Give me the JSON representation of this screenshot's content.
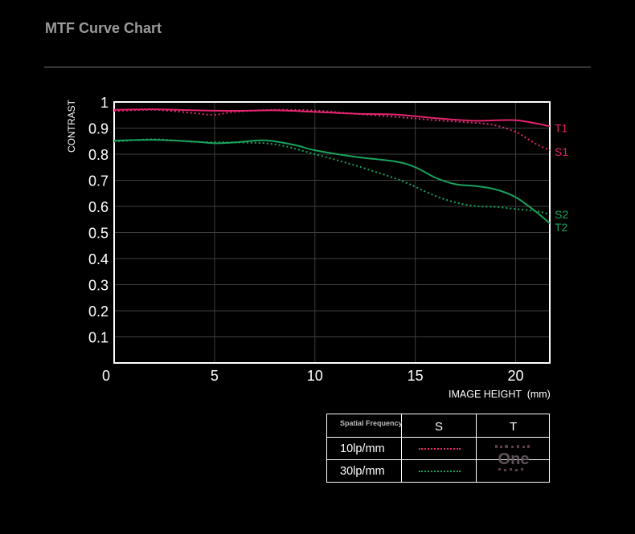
{
  "page": {
    "title": "MTF Curve Chart"
  },
  "chart_data": {
    "type": "line",
    "ylabel": "CONTRAST",
    "xlabel": "IMAGE HEIGHT  (mm)",
    "xlim": [
      0,
      21.7
    ],
    "ylim": [
      0,
      1
    ],
    "x_ticks": [
      {
        "value": 0,
        "label": "0"
      },
      {
        "value": 5,
        "label": "5"
      },
      {
        "value": 10,
        "label": "10"
      },
      {
        "value": 15,
        "label": "15"
      },
      {
        "value": 20,
        "label": "20"
      }
    ],
    "y_ticks": [
      {
        "value": 1.0,
        "label": "1"
      },
      {
        "value": 0.9,
        "label": "0.9"
      },
      {
        "value": 0.8,
        "label": "0.8"
      },
      {
        "value": 0.7,
        "label": "0.7"
      },
      {
        "value": 0.6,
        "label": "0.6"
      },
      {
        "value": 0.5,
        "label": "0.5"
      },
      {
        "value": 0.4,
        "label": "0.4"
      },
      {
        "value": 0.3,
        "label": "0.3"
      },
      {
        "value": 0.2,
        "label": "0.2"
      },
      {
        "value": 0.1,
        "label": "0.1"
      }
    ],
    "grid": true,
    "series": [
      {
        "name": "T1",
        "color": "#e5246f",
        "style": "solid",
        "points": [
          [
            0,
            0.97
          ],
          [
            2,
            0.972
          ],
          [
            4,
            0.968
          ],
          [
            6,
            0.966
          ],
          [
            8,
            0.968
          ],
          [
            10,
            0.962
          ],
          [
            12,
            0.955
          ],
          [
            14,
            0.952
          ],
          [
            16,
            0.938
          ],
          [
            18,
            0.928
          ],
          [
            20,
            0.93
          ],
          [
            21.7,
            0.907
          ]
        ]
      },
      {
        "name": "S1",
        "color": "#e5246f",
        "style": "dotted",
        "points": [
          [
            0,
            0.965
          ],
          [
            2,
            0.97
          ],
          [
            4,
            0.957
          ],
          [
            5,
            0.951
          ],
          [
            6,
            0.962
          ],
          [
            8,
            0.97
          ],
          [
            10,
            0.967
          ],
          [
            12,
            0.955
          ],
          [
            14,
            0.943
          ],
          [
            16,
            0.93
          ],
          [
            18,
            0.92
          ],
          [
            19,
            0.91
          ],
          [
            20,
            0.885
          ],
          [
            21,
            0.84
          ],
          [
            21.7,
            0.815
          ]
        ]
      },
      {
        "name": "T2",
        "color": "#1aa35c",
        "style": "solid",
        "points": [
          [
            0,
            0.852
          ],
          [
            2,
            0.855
          ],
          [
            4,
            0.848
          ],
          [
            5,
            0.842
          ],
          [
            6,
            0.845
          ],
          [
            7.5,
            0.853
          ],
          [
            9,
            0.835
          ],
          [
            10,
            0.815
          ],
          [
            12,
            0.79
          ],
          [
            14,
            0.772
          ],
          [
            15,
            0.75
          ],
          [
            16,
            0.71
          ],
          [
            17,
            0.685
          ],
          [
            18,
            0.678
          ],
          [
            19,
            0.665
          ],
          [
            20,
            0.635
          ],
          [
            21,
            0.58
          ],
          [
            21.7,
            0.535
          ]
        ]
      },
      {
        "name": "S2",
        "color": "#1aa35c",
        "style": "dotted",
        "points": [
          [
            0,
            0.848
          ],
          [
            2,
            0.857
          ],
          [
            4,
            0.847
          ],
          [
            6,
            0.845
          ],
          [
            8,
            0.838
          ],
          [
            10,
            0.8
          ],
          [
            12,
            0.757
          ],
          [
            14,
            0.707
          ],
          [
            15,
            0.675
          ],
          [
            16,
            0.64
          ],
          [
            17,
            0.615
          ],
          [
            18,
            0.601
          ],
          [
            19,
            0.598
          ],
          [
            20,
            0.59
          ],
          [
            21,
            0.582
          ],
          [
            21.7,
            0.57
          ]
        ]
      }
    ],
    "series_labels": [
      {
        "text": "T1",
        "value": 0.9,
        "color": "#e5246f"
      },
      {
        "text": "S1",
        "value": 0.81,
        "color": "#e5246f"
      },
      {
        "text": "S2",
        "value": 0.57,
        "color": "#1aa35c"
      },
      {
        "text": "T2",
        "value": 0.52,
        "color": "#1aa35c"
      }
    ]
  },
  "legend": {
    "header": "Spatial Frequency",
    "col_s": "S",
    "col_t": "T",
    "rows": [
      {
        "label": "10lp/mm",
        "color": "#e5246f"
      },
      {
        "label": "30lp/mm",
        "color": "#1aa35c"
      }
    ],
    "watermark": "One"
  }
}
